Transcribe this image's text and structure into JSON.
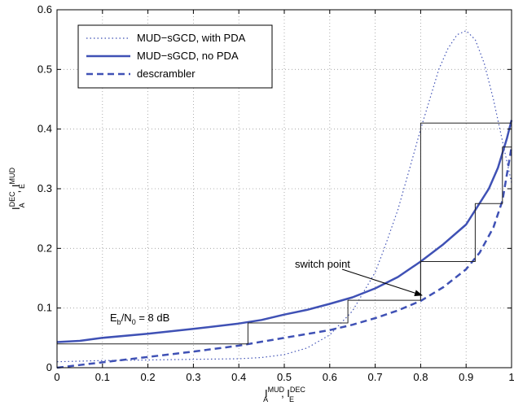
{
  "chart_data": {
    "type": "line",
    "x_ticks": [
      "0",
      "0.1",
      "0.2",
      "0.3",
      "0.4",
      "0.5",
      "0.6",
      "0.7",
      "0.8",
      "0.9",
      "1"
    ],
    "y_ticks": [
      "0",
      "0.1",
      "0.2",
      "0.3",
      "0.4",
      "0.5",
      "0.6"
    ],
    "xlim": [
      0,
      1
    ],
    "ylim": [
      0,
      0.6
    ],
    "grid": true,
    "legend_position": "top-left",
    "xlabel": {
      "main": "I",
      "sup1": "MUD",
      "sub1": "A",
      "sep": ", I",
      "sup2": "DEC",
      "sub2": "E"
    },
    "ylabel": {
      "main": "I",
      "sup1": "DEC",
      "sub1": "A",
      "sep": ", I",
      "sup2": "MUD",
      "sub2": "E"
    },
    "series": [
      {
        "name": "MUD−sGCD, with PDA",
        "style": "dotted",
        "color": "#3f51b5",
        "x": [
          0.0,
          0.1,
          0.2,
          0.3,
          0.4,
          0.45,
          0.5,
          0.55,
          0.6,
          0.65,
          0.7,
          0.72,
          0.75,
          0.78,
          0.8,
          0.82,
          0.84,
          0.86,
          0.88,
          0.9,
          0.92,
          0.94,
          0.96,
          0.98,
          1.0
        ],
        "y": [
          0.01,
          0.012,
          0.013,
          0.014,
          0.015,
          0.017,
          0.022,
          0.033,
          0.055,
          0.095,
          0.16,
          0.2,
          0.265,
          0.345,
          0.4,
          0.45,
          0.5,
          0.535,
          0.558,
          0.565,
          0.55,
          0.51,
          0.45,
          0.38,
          0.31
        ]
      },
      {
        "name": "MUD−sGCD, no PDA",
        "style": "solid",
        "color": "#3f51b5",
        "x": [
          0.0,
          0.05,
          0.1,
          0.2,
          0.3,
          0.4,
          0.45,
          0.5,
          0.55,
          0.6,
          0.65,
          0.7,
          0.75,
          0.8,
          0.85,
          0.9,
          0.95,
          0.97,
          0.99,
          1.0
        ],
        "y": [
          0.043,
          0.045,
          0.05,
          0.057,
          0.065,
          0.074,
          0.08,
          0.089,
          0.097,
          0.107,
          0.118,
          0.133,
          0.152,
          0.178,
          0.207,
          0.24,
          0.3,
          0.335,
          0.385,
          0.415
        ]
      },
      {
        "name": "descrambler",
        "style": "dashed",
        "color": "#3f51b5",
        "x": [
          0.0,
          0.1,
          0.2,
          0.3,
          0.4,
          0.5,
          0.6,
          0.65,
          0.7,
          0.75,
          0.8,
          0.85,
          0.9,
          0.93,
          0.96,
          0.98,
          1.0
        ],
        "y": [
          0.0,
          0.009,
          0.018,
          0.027,
          0.037,
          0.05,
          0.063,
          0.072,
          0.083,
          0.096,
          0.112,
          0.135,
          0.165,
          0.193,
          0.235,
          0.28,
          0.37
        ]
      },
      {
        "name": "",
        "style": "staircase",
        "color": "#222222",
        "x": [
          0.0,
          0.42,
          0.42,
          0.64,
          0.64,
          0.8,
          0.8,
          0.92,
          0.92,
          0.98,
          0.98,
          1.0
        ],
        "y": [
          0.04,
          0.04,
          0.075,
          0.075,
          0.113,
          0.113,
          0.178,
          0.178,
          0.275,
          0.275,
          0.37,
          0.37
        ]
      },
      {
        "name": "",
        "style": "staircase",
        "color": "#222222",
        "x": [
          0.8,
          0.8,
          1.0
        ],
        "y": [
          0.113,
          0.41,
          0.41
        ]
      }
    ],
    "annotations": {
      "switch_point": "switch point",
      "ebno": {
        "e": "E",
        "b": "b",
        "slash_n": "/N",
        "zero": "0",
        "rest": " = 8 dB"
      }
    }
  }
}
